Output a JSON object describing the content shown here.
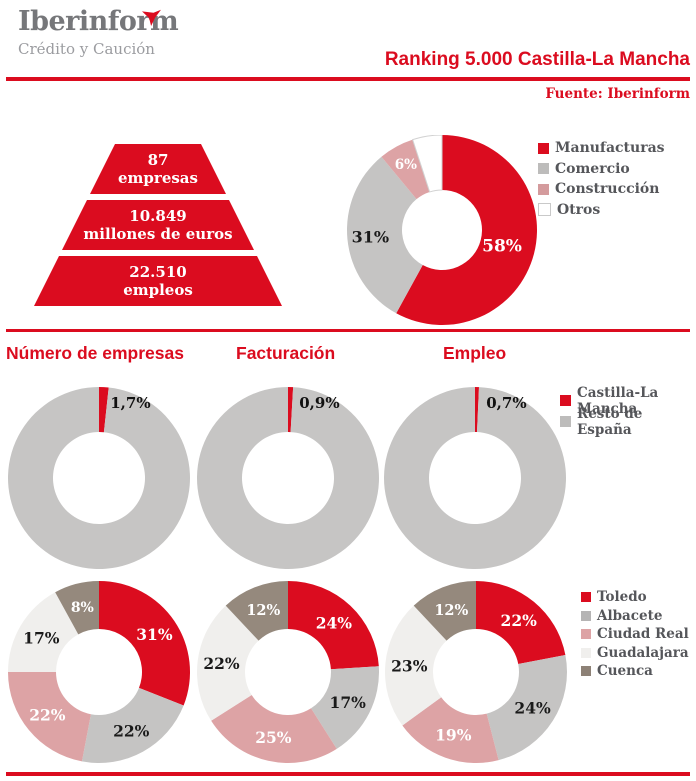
{
  "brand": {
    "logo_text": "Iberinform",
    "logo_subtext": "Crédito y Caución"
  },
  "header": {
    "title": "Ranking 5.000 Castilla-La Mancha",
    "source": "Fuente: Iberinform"
  },
  "colors": {
    "accent_red": "#DB0C1F",
    "gray": "#C5C4C3",
    "pink": "#DDA3A5",
    "light_gray": "#F0EFED",
    "taupe": "#95897D",
    "legend_text": "#55565A"
  },
  "pyramid": {
    "tiers": [
      {
        "line1": "87",
        "line2": "empresas"
      },
      {
        "line1": "10.849",
        "line2": "millones de euros"
      },
      {
        "line1": "22.510",
        "line2": "empleos"
      }
    ]
  },
  "sections": {
    "columns": [
      "Número de empresas",
      "Facturación",
      "Empleo"
    ]
  },
  "legends": {
    "sectors": [
      {
        "label": "Manufacturas",
        "color": "#DB0C1F"
      },
      {
        "label": "Comercio",
        "color": "#BDBCBB"
      },
      {
        "label": "Construcción",
        "color": "#D49B9D"
      },
      {
        "label": "Otros",
        "color": "#FFFFFF",
        "border": "#C9C9C9"
      }
    ],
    "region": [
      {
        "label": "Castilla-La Mancha",
        "color": "#DB0C1F"
      },
      {
        "label": "Resto de España",
        "color": "#BDBCBB"
      }
    ],
    "provinces": [
      {
        "label": "Toledo",
        "color": "#DB0C1F"
      },
      {
        "label": "Albacete",
        "color": "#B5B4B4"
      },
      {
        "label": "Ciudad Real",
        "color": "#DDA3A5"
      },
      {
        "label": "Guadalajara",
        "color": "#F0EFED"
      },
      {
        "label": "Cuenca",
        "color": "#8D8176"
      }
    ]
  },
  "chart_data": [
    {
      "type": "pie",
      "title": "",
      "legend_position": "right",
      "outer_r": 95,
      "inner_r": 40,
      "slices": [
        {
          "name": "Manufacturas",
          "value": 58,
          "color": "#DB0C1F",
          "label": "58%",
          "label_color": "#FFFFFF",
          "label_size": 17,
          "label_r": 62
        },
        {
          "name": "Comercio",
          "value": 31,
          "color": "#C5C4C3",
          "label": "31%",
          "label_color": "#1A1A1A",
          "label_size": 16,
          "label_r": 72
        },
        {
          "name": "Construcción",
          "value": 6,
          "color": "#DDA3A5",
          "label": "6%",
          "label_color": "#FFFFFF",
          "label_size": 13.5,
          "label_r": 75
        },
        {
          "name": "Otros",
          "value": 5,
          "color": "#FFFFFF",
          "stroke_color": "#D2D2D2"
        }
      ]
    },
    {
      "type": "pie",
      "title": "Número de empresas",
      "outer_r": 91,
      "inner_r": 46,
      "slices": [
        {
          "name": "Castilla-La Mancha",
          "value": 1.7,
          "color": "#DB0C1F",
          "label": "1,7%",
          "label_color": "#111111",
          "label_size": 15,
          "label_r": 76,
          "label_angle": 8.5,
          "anchor": "start"
        },
        {
          "name": "Resto de España",
          "value": 98.3,
          "color": "#C6C5C4"
        }
      ]
    },
    {
      "type": "pie",
      "title": "Facturación",
      "outer_r": 91,
      "inner_r": 46,
      "slices": [
        {
          "name": "Castilla-La Mancha",
          "value": 0.9,
          "color": "#DB0C1F",
          "label": "0,9%",
          "label_color": "#111111",
          "label_size": 15,
          "label_r": 76,
          "label_angle": 8.5,
          "anchor": "start"
        },
        {
          "name": "Resto de España",
          "value": 99.1,
          "color": "#C6C5C4"
        }
      ]
    },
    {
      "type": "pie",
      "title": "Empleo",
      "outer_r": 91,
      "inner_r": 46,
      "slices": [
        {
          "name": "Castilla-La Mancha",
          "value": 0.7,
          "color": "#DB0C1F",
          "label": "0,7%",
          "label_color": "#111111",
          "label_size": 15,
          "label_r": 76,
          "label_angle": 8.5,
          "anchor": "start"
        },
        {
          "name": "Resto de España",
          "value": 99.3,
          "color": "#C6C5C4"
        }
      ]
    },
    {
      "type": "pie",
      "title": "Número de empresas",
      "outer_r": 91,
      "inner_r": 43,
      "slices": [
        {
          "name": "Toledo",
          "value": 31,
          "color": "#DB0C1F",
          "label": "31%",
          "label_color": "#FFFFFF",
          "label_size": 15.5
        },
        {
          "name": "Albacete",
          "value": 22,
          "color": "#C5C4C3",
          "label": "22%",
          "label_color": "#1A1A1A",
          "label_size": 15.5
        },
        {
          "name": "Ciudad Real",
          "value": 22,
          "color": "#DDA3A5",
          "label": "22%",
          "label_color": "#FFFFFF",
          "label_size": 15.5
        },
        {
          "name": "Guadalajara",
          "value": 17,
          "color": "#F0EFED",
          "label": "17%",
          "label_color": "#1A1A1A",
          "label_size": 15.5
        },
        {
          "name": "Cuenca",
          "value": 8,
          "color": "#95897D",
          "label": "8%",
          "label_color": "#FFFFFF",
          "label_size": 14
        }
      ]
    },
    {
      "type": "pie",
      "title": "Facturación",
      "outer_r": 91,
      "inner_r": 43,
      "slices": [
        {
          "name": "Toledo",
          "value": 24,
          "color": "#DB0C1F",
          "label": "24%",
          "label_color": "#FFFFFF",
          "label_size": 15.5
        },
        {
          "name": "Albacete",
          "value": 17,
          "color": "#C5C4C3",
          "label": "17%",
          "label_color": "#1A1A1A",
          "label_size": 15.5
        },
        {
          "name": "Ciudad Real",
          "value": 25,
          "color": "#DDA3A5",
          "label": "25%",
          "label_color": "#FFFFFF",
          "label_size": 15.5
        },
        {
          "name": "Guadalajara",
          "value": 22,
          "color": "#F0EFED",
          "label": "22%",
          "label_color": "#1A1A1A",
          "label_size": 15.5
        },
        {
          "name": "Cuenca",
          "value": 12,
          "color": "#95897D",
          "label": "12%",
          "label_color": "#FFFFFF",
          "label_size": 14.5
        }
      ]
    },
    {
      "type": "pie",
      "title": "Empleo",
      "outer_r": 91,
      "inner_r": 43,
      "slices": [
        {
          "name": "Toledo",
          "value": 22,
          "color": "#DB0C1F",
          "label": "22%",
          "label_color": "#FFFFFF",
          "label_size": 15.5
        },
        {
          "name": "Albacete",
          "value": 24,
          "color": "#C5C4C3",
          "label": "24%",
          "label_color": "#1A1A1A",
          "label_size": 15.5
        },
        {
          "name": "Ciudad Real",
          "value": 19,
          "color": "#DDA3A5",
          "label": "19%",
          "label_color": "#FFFFFF",
          "label_size": 15.5
        },
        {
          "name": "Guadalajara",
          "value": 23,
          "color": "#F0EFED",
          "label": "23%",
          "label_color": "#1A1A1A",
          "label_size": 15.5
        },
        {
          "name": "Cuenca",
          "value": 12,
          "color": "#95897D",
          "label": "12%",
          "label_color": "#FFFFFF",
          "label_size": 14.5
        }
      ]
    }
  ]
}
